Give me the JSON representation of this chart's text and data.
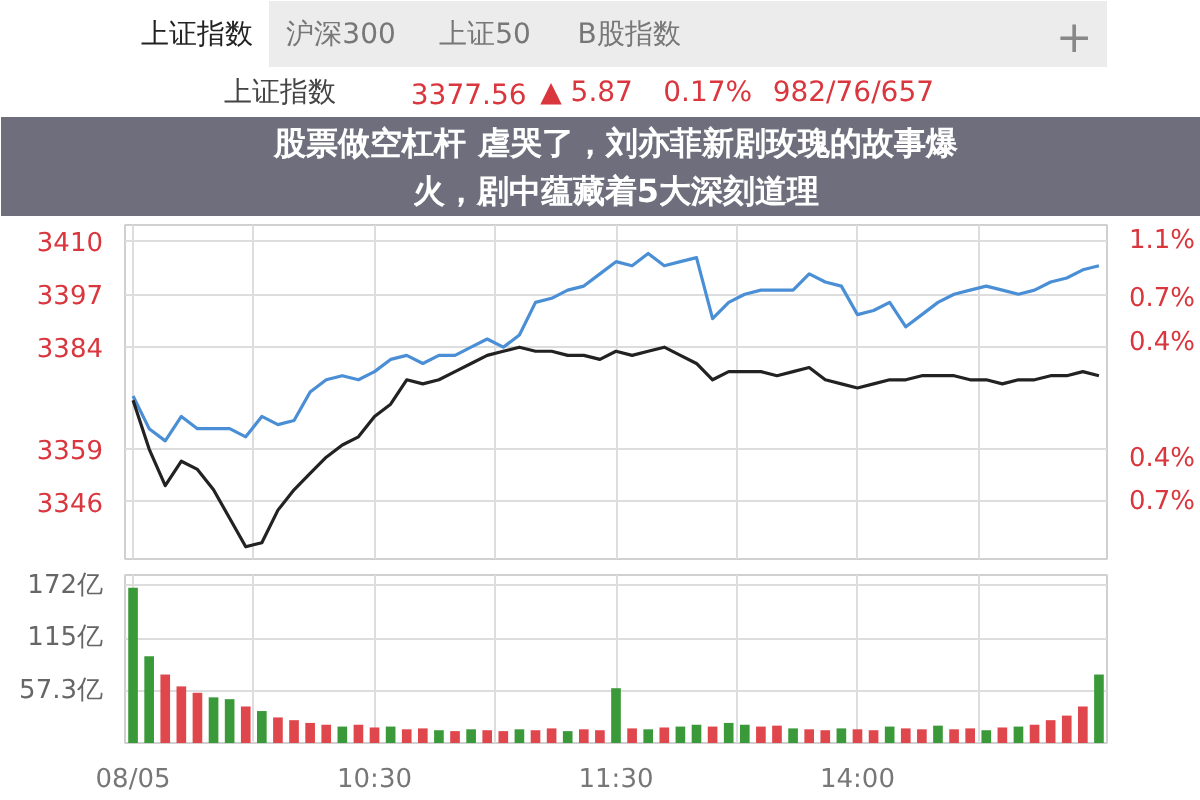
{
  "chart_data": [
    {
      "type": "line",
      "title": "股票做空杠杆 虐哭了，刘亦菲新剧玫瑰的故事爆火，剧中蕴藏着5大深刻道理",
      "annotations": [
        "上证指数",
        "沪深300",
        "上证50",
        "B股指数",
        "+",
        "上证指数",
        "3377.56",
        "▲ 5.87",
        "0.17%",
        "982/76/657"
      ],
      "categories": [
        null,
        null,
        null,
        null,
        null,
        null,
        null,
        null,
        null,
        null,
        null,
        null,
        null,
        null,
        null,
        null,
        null,
        null,
        null,
        null,
        null,
        null,
        null,
        null,
        null,
        null,
        null,
        null,
        null,
        null,
        null,
        null,
        null,
        null,
        null,
        null,
        null,
        null,
        null,
        null,
        null,
        null,
        null,
        null,
        null,
        null,
        null,
        null,
        null,
        null,
        null,
        null,
        null,
        null,
        null,
        null,
        null,
        null,
        null,
        null,
        null
      ],
      "series": [
        {
          "color": "#4a8fd6",
          "values": [
            3372,
            3364,
            3361,
            3367,
            3364,
            3364,
            3364,
            3362,
            3367,
            3365,
            3366,
            3373,
            3376,
            3377,
            3376,
            3378,
            3381,
            3382,
            3380,
            3382,
            3382,
            3384,
            3386,
            3384,
            3387,
            3395,
            3396,
            3398,
            3399,
            3402,
            3405,
            3404,
            3407,
            3404,
            3405,
            3406,
            3391,
            3395,
            3397,
            3398,
            3398,
            3398,
            3402,
            3400,
            3399,
            3392,
            3393,
            3395,
            3389,
            3392,
            3395,
            3397,
            3398,
            3399,
            3398,
            3397,
            3398,
            3400,
            3401,
            3403,
            3404
          ]
        },
        {
          "color": "#222222",
          "values": [
            3371,
            3359,
            3350,
            3356,
            3354,
            3349,
            3342,
            3335,
            3336,
            3344,
            3349,
            3353,
            3357,
            3360,
            3362,
            3367,
            3370,
            3376,
            3375,
            3376,
            3378,
            3380,
            3382,
            3383,
            3384,
            3383,
            3383,
            3382,
            3382,
            3381,
            3383,
            3382,
            3383,
            3384,
            3382,
            3380,
            3376,
            3378,
            3378,
            3378,
            3377,
            3378,
            3379,
            3376,
            3375,
            3374,
            3375,
            3376,
            3376,
            3377,
            3377,
            3377,
            3376,
            3376,
            3375,
            3376,
            3376,
            3377,
            3377,
            3378,
            3377
          ]
        }
      ],
      "ylim": [
        3332,
        3414
      ],
      "yticks": [
        3346,
        3359,
        3384,
        3397,
        3410
      ],
      "y2lim": [
        -1.094,
        1.214
      ],
      "y2ticks": [
        {
          "value": 1.1,
          "label": "1.1%"
        },
        {
          "value": 0.7,
          "label": "0.7%"
        },
        {
          "value": 0.4,
          "label": "0.4%"
        },
        {
          "value": -0.4,
          "label": "0.4%"
        },
        {
          "value": -0.7,
          "label": "0.7%"
        }
      ],
      "grid": true,
      "tick_labels": "y"
    },
    {
      "type": "bar",
      "categories": [
        "08/05",
        null,
        null,
        null,
        null,
        null,
        null,
        null,
        null,
        null,
        null,
        null,
        null,
        null,
        null,
        "10:30",
        null,
        null,
        null,
        null,
        null,
        null,
        null,
        null,
        null,
        null,
        null,
        null,
        null,
        null,
        "11:30",
        null,
        null,
        null,
        null,
        null,
        null,
        null,
        null,
        null,
        null,
        null,
        null,
        null,
        null,
        "14:00",
        null,
        null,
        null,
        null,
        null,
        null,
        null,
        null,
        null,
        null,
        null,
        null,
        null,
        null,
        null
      ],
      "values": [
        170,
        95,
        75,
        62,
        55,
        50,
        48,
        40,
        35,
        28,
        25,
        22,
        20,
        18,
        20,
        17,
        18,
        15,
        16,
        14,
        13,
        15,
        14,
        13,
        15,
        14,
        16,
        13,
        15,
        14,
        60,
        16,
        15,
        17,
        18,
        20,
        18,
        22,
        20,
        18,
        19,
        16,
        15,
        14,
        16,
        15,
        14,
        18,
        16,
        15,
        19,
        15,
        16,
        14,
        17,
        18,
        20,
        25,
        30,
        40,
        75
      ],
      "colors": [
        "#3a9a3a",
        "#3a9a3a",
        "#e0474c",
        "#e0474c",
        "#e0474c",
        "#3a9a3a",
        "#3a9a3a",
        "#e0474c",
        "#3a9a3a",
        "#e0474c",
        "#e0474c",
        "#e0474c",
        "#e0474c",
        "#3a9a3a",
        "#e0474c",
        "#e0474c",
        "#3a9a3a",
        "#e0474c",
        "#e0474c",
        "#3a9a3a",
        "#e0474c",
        "#3a9a3a",
        "#e0474c",
        "#e0474c",
        "#3a9a3a",
        "#e0474c",
        "#e0474c",
        "#3a9a3a",
        "#e0474c",
        "#e0474c",
        "#3a9a3a",
        "#e0474c",
        "#3a9a3a",
        "#e0474c",
        "#3a9a3a",
        "#3a9a3a",
        "#e0474c",
        "#3a9a3a",
        "#3a9a3a",
        "#e0474c",
        "#e0474c",
        "#3a9a3a",
        "#e0474c",
        "#e0474c",
        "#3a9a3a",
        "#e0474c",
        "#e0474c",
        "#3a9a3a",
        "#e0474c",
        "#e0474c",
        "#3a9a3a",
        "#e0474c",
        "#e0474c",
        "#3a9a3a",
        "#e0474c",
        "#3a9a3a",
        "#e0474c",
        "#e0474c",
        "#e0474c",
        "#e0474c",
        "#3a9a3a"
      ],
      "ylim": [
        0,
        184
      ],
      "yticks": [
        {
          "value": 57.3,
          "label": "57.3亿"
        },
        {
          "value": 115,
          "label": "115亿"
        },
        {
          "value": 172,
          "label": "172亿"
        }
      ],
      "grid": true
    }
  ]
}
